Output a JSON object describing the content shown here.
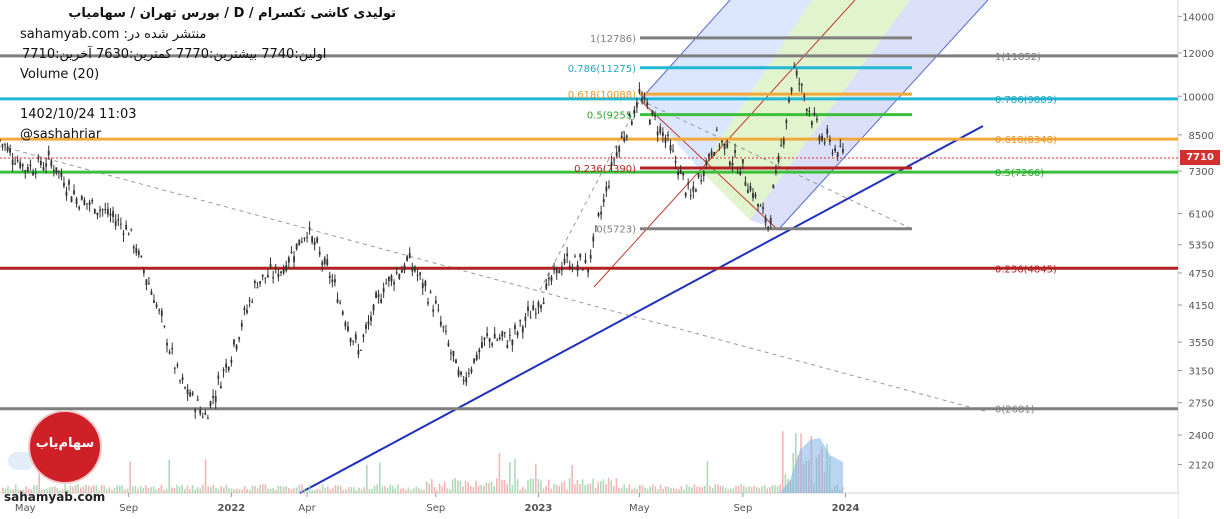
{
  "header": {
    "title": "تولیدی کاشی تکسرام / D / بورس تهران / سهامیاب",
    "published": "sahamyab.com :منتشر شده در",
    "ohlc": "اولین:7740 بیشترین:7770 کمترین:7630 آخرین:7710",
    "volume": "Volume (20)",
    "datetime": "1402/10/24 11:03",
    "author": "@sashahriar"
  },
  "watermark": {
    "logo_text": "سهام‌یاب",
    "site": "sahamyab.com"
  },
  "last_price": "7710",
  "colors": {
    "gray": "#7f7f7f",
    "red": "#b22222",
    "orange": "#f2a93b",
    "green": "#3cbf3c",
    "cyan": "#22b7d4",
    "blue": "#1f2fbf",
    "accent": "#d32f2f"
  },
  "chart_data": {
    "type": "candlestick",
    "symbol": "تکسرام",
    "timeframe": "D",
    "y_axis": {
      "scale": "log",
      "range": [
        1880,
        15000
      ],
      "ticks": [
        "14000",
        "12000",
        "10000",
        "8500",
        "7300",
        "6100",
        "5350",
        "4750",
        "4150",
        "3550",
        "3150",
        "2750",
        "2400",
        "2120"
      ]
    },
    "x_axis": {
      "ticks": [
        "May",
        "Sep",
        "2022",
        "Apr",
        "Sep",
        "2023",
        "May",
        "Sep",
        "2024"
      ]
    },
    "price_path": [
      {
        "date": "2021-04",
        "price": 8300
      },
      {
        "date": "2021-05",
        "price": 7400
      },
      {
        "date": "2021-06",
        "price": 7600
      },
      {
        "date": "2021-07",
        "price": 6500
      },
      {
        "date": "2021-08",
        "price": 6200
      },
      {
        "date": "2021-09",
        "price": 5700
      },
      {
        "date": "2021-10",
        "price": 4300
      },
      {
        "date": "2021-11",
        "price": 3000
      },
      {
        "date": "2021-12",
        "price": 2600
      },
      {
        "date": "2022-01",
        "price": 3400
      },
      {
        "date": "2022-02",
        "price": 4600
      },
      {
        "date": "2022-03",
        "price": 4800
      },
      {
        "date": "2022-04",
        "price": 5700
      },
      {
        "date": "2022-05",
        "price": 4600
      },
      {
        "date": "2022-06",
        "price": 3400
      },
      {
        "date": "2022-07",
        "price": 4500
      },
      {
        "date": "2022-08",
        "price": 5000
      },
      {
        "date": "2022-09",
        "price": 4100
      },
      {
        "date": "2022-10",
        "price": 3000
      },
      {
        "date": "2022-11",
        "price": 3600
      },
      {
        "date": "2022-12",
        "price": 3600
      },
      {
        "date": "2023-01",
        "price": 4200
      },
      {
        "date": "2023-02",
        "price": 5000
      },
      {
        "date": "2023-03",
        "price": 4900
      },
      {
        "date": "2023-04",
        "price": 7700
      },
      {
        "date": "2023-05",
        "price": 10000
      },
      {
        "date": "2023-06",
        "price": 8400
      },
      {
        "date": "2023-07",
        "price": 6500
      },
      {
        "date": "2023-08",
        "price": 8400
      },
      {
        "date": "2023-09",
        "price": 7300
      },
      {
        "date": "2023-10",
        "price": 5800
      },
      {
        "date": "2023-11",
        "price": 11200
      },
      {
        "date": "2023-12",
        "price": 8500
      },
      {
        "date": "2024-01",
        "price": 7710
      }
    ],
    "fib_levels_large": [
      {
        "label": "1(11852)",
        "value": 11852
      },
      {
        "label": "0.786(9889)",
        "value": 9889
      },
      {
        "label": "0.618(8348)",
        "value": 8348
      },
      {
        "label": "0.5(7266)",
        "value": 7266
      },
      {
        "label": "0.236(4845)",
        "value": 4845
      },
      {
        "label": "0(2681)",
        "value": 2681
      }
    ],
    "fib_levels_small": [
      {
        "label": "1(12786)",
        "value": 12786
      },
      {
        "label": "0.786(11275)",
        "value": 11275
      },
      {
        "label": "0.618(10088)",
        "value": 10088
      },
      {
        "label": "0.5(9255)",
        "value": 9255
      },
      {
        "label": "0.236(7390)",
        "value": 7390
      },
      {
        "label": "0(5723)",
        "value": 5723
      }
    ],
    "volume_label": "Volume (20)",
    "legend": "none",
    "grid": false
  }
}
